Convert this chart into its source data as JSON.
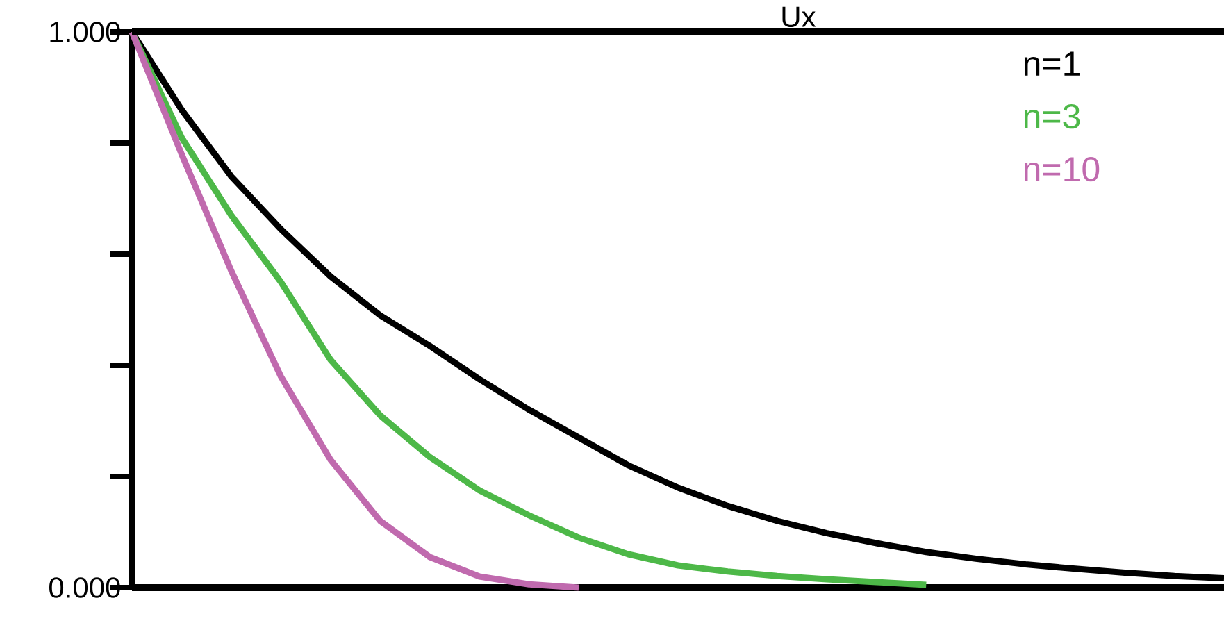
{
  "chart_data": {
    "type": "line",
    "title": "Ux",
    "categories": [
      null,
      null,
      null,
      null,
      null,
      null,
      null,
      null,
      null,
      null,
      null,
      null,
      null,
      null,
      null,
      null,
      null,
      null,
      null,
      null,
      null,
      null,
      null
    ],
    "ylim": [
      0,
      1
    ],
    "yticks": [
      {
        "value": 0,
        "label": "0.000"
      },
      {
        "value": 0.2,
        "label": null
      },
      {
        "value": 0.4,
        "label": null
      },
      {
        "value": 0.6,
        "label": null
      },
      {
        "value": 0.8,
        "label": null
      },
      {
        "value": 1,
        "label": "1.000"
      }
    ],
    "tick_labels": "y",
    "grid": false,
    "series": [
      {
        "name": "n=1",
        "color": "#000000",
        "values": [
          1,
          0.86,
          0.74,
          0.645,
          0.56,
          0.49,
          0.435,
          0.375,
          0.32,
          0.27,
          0.22,
          0.18,
          0.147,
          0.12,
          0.098,
          0.08,
          0.064,
          0.052,
          0.042,
          0.034,
          0.027,
          0.021,
          0.017
        ]
      },
      {
        "name": "n=3",
        "color": "#4db848",
        "values": [
          1,
          0.81,
          0.67,
          0.55,
          0.41,
          0.31,
          0.235,
          0.175,
          0.13,
          0.09,
          0.06,
          0.04,
          0.029,
          0.021,
          0.015,
          0.01,
          0.005,
          null,
          null,
          null,
          null,
          null,
          null
        ]
      },
      {
        "name": "n=10",
        "color": "#c06aae",
        "values": [
          1,
          0.78,
          0.57,
          0.38,
          0.23,
          0.12,
          0.055,
          0.02,
          0.006,
          0,
          null,
          null,
          null,
          null,
          null,
          null,
          null,
          null,
          null,
          null,
          null,
          null,
          null
        ]
      }
    ]
  }
}
